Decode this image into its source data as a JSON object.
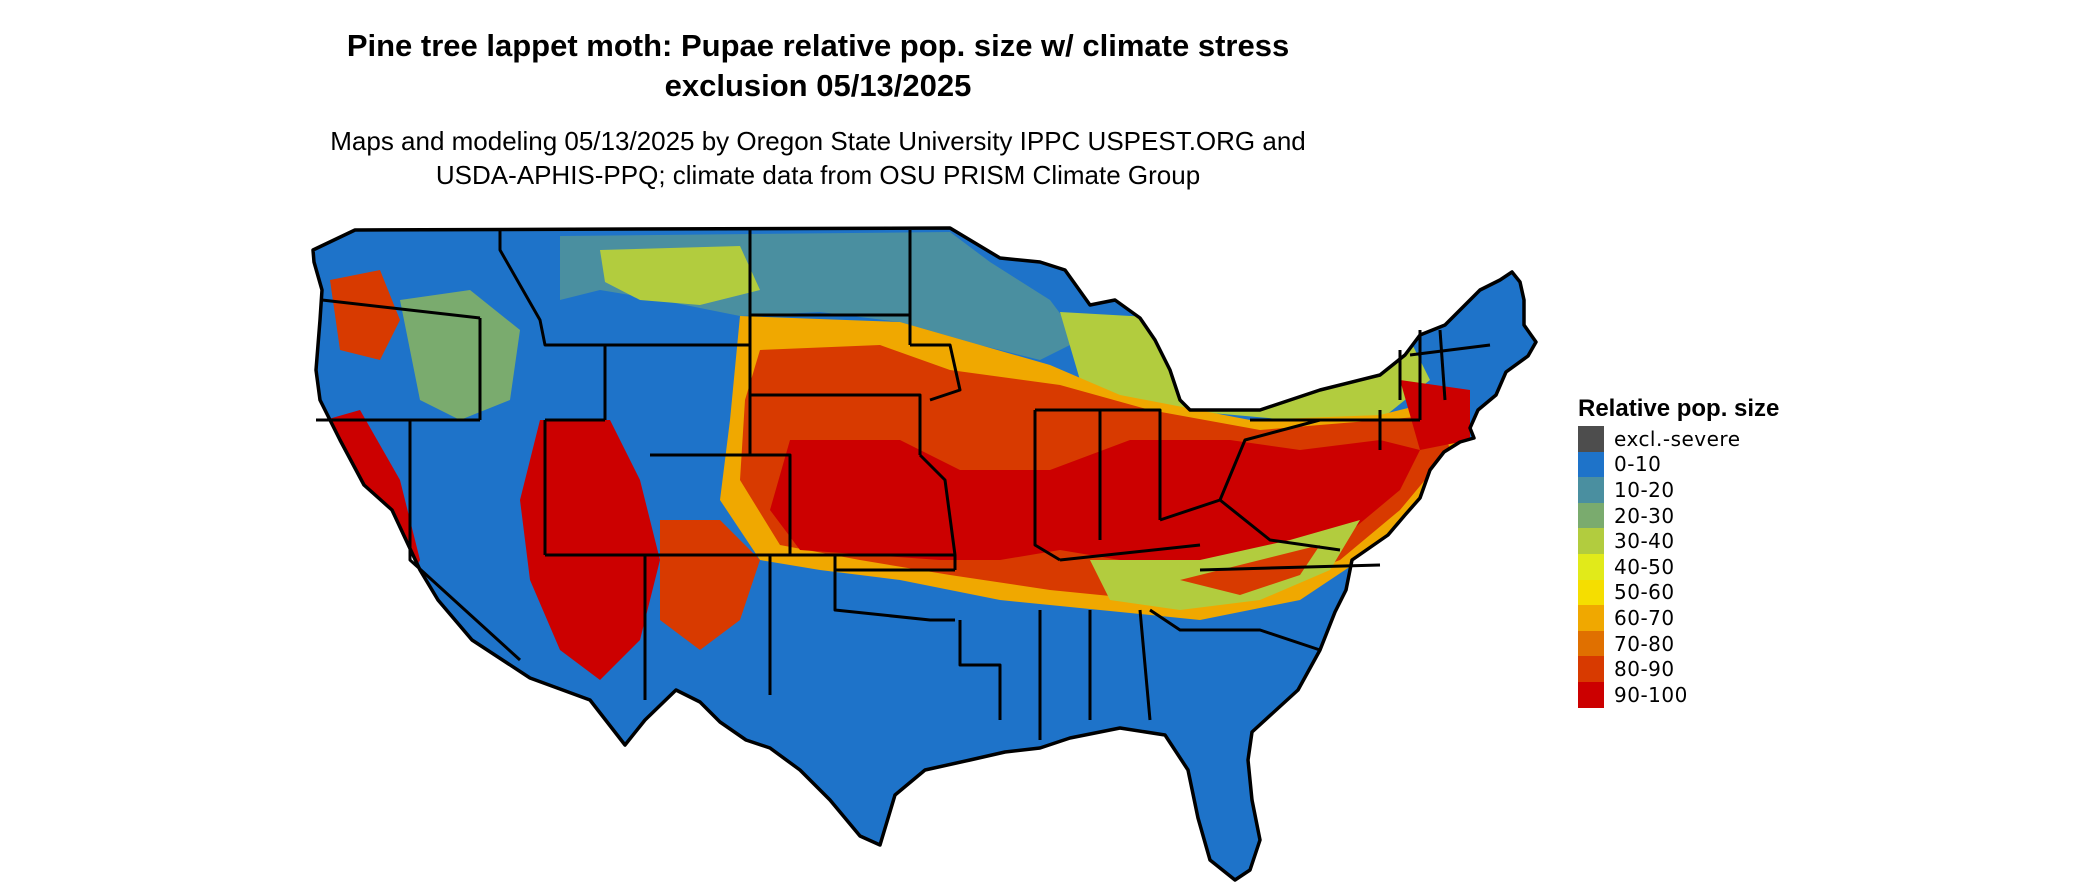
{
  "title": "Pine tree lappet moth: Pupae relative pop. size w/ climate stress exclusion 05/13/2025",
  "subtitle": "Maps and modeling 05/13/2025 by Oregon State University IPPC USPEST.ORG and USDA-APHIS-PPQ; climate data from OSU PRISM Climate Group",
  "legend": {
    "title": "Relative pop. size",
    "items": [
      {
        "label": "excl.-severe",
        "color": "#4d4d4d"
      },
      {
        "label": "0-10",
        "color": "#1e73c9"
      },
      {
        "label": "10-20",
        "color": "#4a8fa0"
      },
      {
        "label": "20-30",
        "color": "#7aab6e"
      },
      {
        "label": "30-40",
        "color": "#b2cc3e"
      },
      {
        "label": "40-50",
        "color": "#e1ea1a"
      },
      {
        "label": "50-60",
        "color": "#f5de00"
      },
      {
        "label": "60-70",
        "color": "#f0a800"
      },
      {
        "label": "70-80",
        "color": "#e07000"
      },
      {
        "label": "80-90",
        "color": "#d83a00"
      },
      {
        "label": "90-100",
        "color": "#cc0000"
      }
    ]
  },
  "map": {
    "region": "Contiguous United States",
    "base_color": "#1e73c9",
    "border_color": "#000000"
  }
}
